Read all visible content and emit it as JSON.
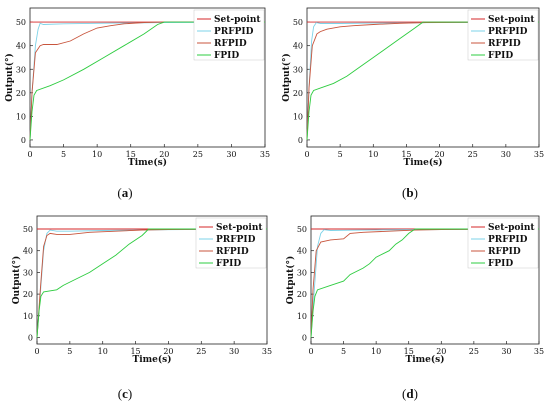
{
  "colors": {
    "setpoint": "#d62728",
    "prfpid": "#7ed3e8",
    "rfpid": "#c8553d",
    "fpid": "#2ecc40"
  },
  "chart_data": [
    {
      "type": "line",
      "caption": [
        "(",
        "a",
        ")"
      ],
      "xlabel": "Time(s)",
      "ylabel": "Output(°)",
      "xlim": [
        0,
        35
      ],
      "ylim": [
        -3,
        56
      ],
      "xticks": [
        "0",
        "5",
        "10",
        "15",
        "20",
        "25",
        "30",
        "35"
      ],
      "yticks": [
        "0",
        "10",
        "20",
        "30",
        "40",
        "50"
      ],
      "grid": false,
      "legend": "top-right",
      "series": [
        {
          "name": "Set-point",
          "color_key": "setpoint",
          "x": [
            0,
            35
          ],
          "y": [
            50,
            50
          ]
        },
        {
          "name": "PRFPID",
          "color_key": "prfpid",
          "x": [
            0,
            0.3,
            0.8,
            1.2,
            1.5,
            2,
            5,
            10,
            20,
            35
          ],
          "y": [
            0,
            20,
            40,
            47,
            49.5,
            49,
            49.3,
            49.5,
            49.8,
            50
          ]
        },
        {
          "name": "RFPID",
          "color_key": "rfpid",
          "x": [
            0,
            0.3,
            0.8,
            1.5,
            2,
            4,
            6,
            8,
            10,
            12,
            14,
            17,
            20,
            35
          ],
          "y": [
            0,
            20,
            37,
            40,
            40.5,
            40.5,
            42,
            45,
            47.5,
            48.5,
            49.3,
            49.8,
            50,
            50
          ]
        },
        {
          "name": "FPID",
          "color_key": "fpid",
          "x": [
            0,
            0.3,
            0.6,
            1,
            3,
            5,
            8,
            11,
            14,
            17,
            19,
            20,
            35
          ],
          "y": [
            0,
            12,
            19,
            21,
            23,
            25.5,
            30,
            35,
            40,
            45,
            49,
            50,
            50
          ]
        }
      ]
    },
    {
      "type": "line",
      "caption": [
        "(",
        "b",
        ")"
      ],
      "xlabel": "Time(s)",
      "ylabel": "Output(°)",
      "xlim": [
        0,
        35
      ],
      "ylim": [
        -3,
        56
      ],
      "xticks": [
        "0",
        "5",
        "10",
        "15",
        "20",
        "25",
        "30",
        "35"
      ],
      "yticks": [
        "0",
        "10",
        "20",
        "30",
        "40",
        "50"
      ],
      "grid": false,
      "legend": "top-right",
      "series": [
        {
          "name": "Set-point",
          "color_key": "setpoint",
          "x": [
            0,
            35
          ],
          "y": [
            50,
            50
          ]
        },
        {
          "name": "PRFPID",
          "color_key": "prfpid",
          "x": [
            0,
            0.3,
            0.7,
            1,
            1.4,
            2,
            5,
            10,
            20,
            35
          ],
          "y": [
            0,
            22,
            42,
            48,
            49.8,
            49.4,
            49.4,
            49.6,
            49.8,
            50
          ]
        },
        {
          "name": "RFPID",
          "color_key": "rfpid",
          "x": [
            0,
            0.3,
            0.8,
            1.5,
            2,
            3,
            5,
            7,
            10,
            14,
            18,
            35
          ],
          "y": [
            0,
            22,
            40,
            45,
            46,
            47,
            48,
            48.5,
            49,
            49.5,
            49.8,
            50
          ]
        },
        {
          "name": "FPID",
          "color_key": "fpid",
          "x": [
            0,
            0.3,
            0.6,
            1,
            2,
            4,
            6,
            8,
            10,
            12,
            14,
            16,
            17.5,
            35
          ],
          "y": [
            0,
            12,
            19,
            21,
            22,
            24,
            27,
            31,
            35,
            39,
            43,
            47,
            50,
            50
          ]
        }
      ]
    },
    {
      "type": "line",
      "caption": [
        "(",
        "c",
        ")"
      ],
      "xlabel": "Time(s)",
      "ylabel": "Output(°)",
      "xlim": [
        0,
        35
      ],
      "ylim": [
        -3,
        56
      ],
      "xticks": [
        "0",
        "5",
        "10",
        "15",
        "20",
        "25",
        "30",
        "35"
      ],
      "yticks": [
        "0",
        "10",
        "20",
        "30",
        "40",
        "50"
      ],
      "grid": false,
      "legend": "top-right",
      "series": [
        {
          "name": "Set-point",
          "color_key": "setpoint",
          "x": [
            0,
            35
          ],
          "y": [
            50,
            50
          ]
        },
        {
          "name": "PRFPID",
          "color_key": "prfpid",
          "x": [
            0,
            0.5,
            1,
            1.5,
            2,
            3,
            5,
            10,
            20,
            35
          ],
          "y": [
            0,
            20,
            40,
            48,
            49.5,
            49,
            49,
            49.3,
            49.7,
            50
          ]
        },
        {
          "name": "RFPID",
          "color_key": "rfpid",
          "x": [
            0,
            0.5,
            1,
            1.5,
            2,
            3,
            5,
            8,
            12,
            16,
            20,
            35
          ],
          "y": [
            0,
            22,
            42,
            47,
            48,
            47.5,
            47.5,
            48.5,
            49,
            49.5,
            49.8,
            50
          ]
        },
        {
          "name": "FPID",
          "color_key": "fpid",
          "x": [
            0,
            0.3,
            0.6,
            1,
            3,
            4,
            6,
            8,
            10,
            12,
            14,
            16,
            17,
            35
          ],
          "y": [
            0,
            12,
            19,
            21,
            22,
            24,
            27,
            30,
            34,
            38,
            43,
            47,
            50,
            50
          ]
        }
      ]
    },
    {
      "type": "line",
      "caption": [
        "(",
        "d",
        ")"
      ],
      "xlabel": "Time(s)",
      "ylabel": "Output(°)",
      "xlim": [
        0,
        35
      ],
      "ylim": [
        -3,
        56
      ],
      "xticks": [
        "0",
        "5",
        "10",
        "15",
        "20",
        "25",
        "30",
        "35"
      ],
      "yticks": [
        "0",
        "10",
        "20",
        "30",
        "40",
        "50"
      ],
      "grid": false,
      "legend": "top-right",
      "series": [
        {
          "name": "Set-point",
          "color_key": "setpoint",
          "x": [
            0,
            35
          ],
          "y": [
            50,
            50
          ]
        },
        {
          "name": "PRFPID",
          "color_key": "prfpid",
          "x": [
            0,
            0.5,
            1,
            1.5,
            2,
            3,
            5,
            10,
            20,
            35
          ],
          "y": [
            0,
            22,
            42,
            48,
            49.7,
            49.3,
            49.4,
            49.6,
            49.8,
            50
          ]
        },
        {
          "name": "RFPID",
          "color_key": "rfpid",
          "x": [
            0,
            0.3,
            0.8,
            1.5,
            3,
            5,
            6,
            8,
            12,
            16,
            20,
            35
          ],
          "y": [
            0,
            22,
            40,
            44,
            45,
            45.5,
            48,
            48.5,
            49,
            49.5,
            49.8,
            50
          ]
        },
        {
          "name": "FPID",
          "color_key": "fpid",
          "x": [
            0,
            0.3,
            0.6,
            1,
            3,
            5,
            6,
            8,
            9,
            10,
            12,
            13,
            14,
            15,
            16,
            35
          ],
          "y": [
            0,
            12,
            19,
            22,
            24,
            26,
            29,
            32,
            34,
            37,
            40,
            43,
            45,
            48,
            50,
            50
          ]
        }
      ]
    }
  ]
}
